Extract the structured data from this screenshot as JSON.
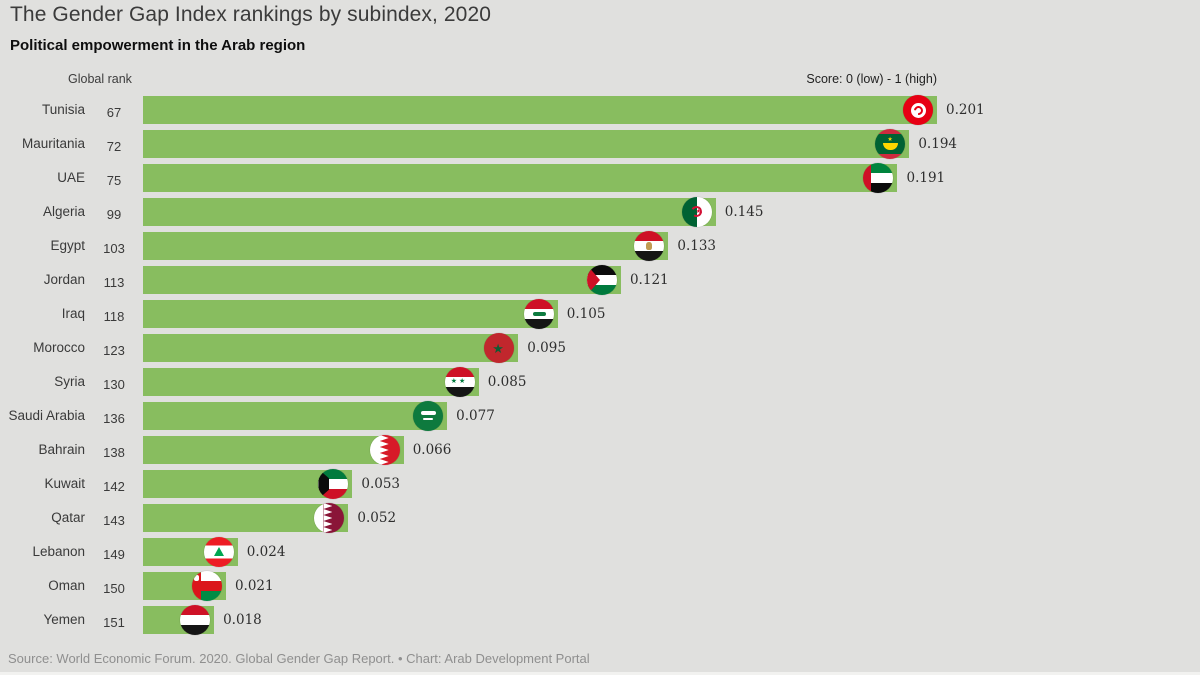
{
  "header": {
    "title": "The Gender Gap Index rankings by subindex, 2020",
    "subtitle": "Political empowerment in the Arab region"
  },
  "chart_data": {
    "type": "bar",
    "orientation": "horizontal",
    "rank_column_header": "Global rank",
    "axis_note": "Score: 0 (low) - 1 (high)",
    "bar_color": "#88bd5f",
    "background_color": "#e0e0de",
    "xlim": [
      0,
      0.201
    ],
    "value_format": "0.000",
    "rows": [
      {
        "country": "Tunisia",
        "rank": 67,
        "value": 0.201,
        "flag": "tn"
      },
      {
        "country": "Mauritania",
        "rank": 72,
        "value": 0.194,
        "flag": "mr"
      },
      {
        "country": "UAE",
        "rank": 75,
        "value": 0.191,
        "flag": "ae"
      },
      {
        "country": "Algeria",
        "rank": 99,
        "value": 0.145,
        "flag": "dz"
      },
      {
        "country": "Egypt",
        "rank": 103,
        "value": 0.133,
        "flag": "eg"
      },
      {
        "country": "Jordan",
        "rank": 113,
        "value": 0.121,
        "flag": "jo"
      },
      {
        "country": "Iraq",
        "rank": 118,
        "value": 0.105,
        "flag": "iq"
      },
      {
        "country": "Morocco",
        "rank": 123,
        "value": 0.095,
        "flag": "ma"
      },
      {
        "country": "Syria",
        "rank": 130,
        "value": 0.085,
        "flag": "sy"
      },
      {
        "country": "Saudi Arabia",
        "rank": 136,
        "value": 0.077,
        "flag": "sa"
      },
      {
        "country": "Bahrain",
        "rank": 138,
        "value": 0.066,
        "flag": "bh"
      },
      {
        "country": "Kuwait",
        "rank": 142,
        "value": 0.053,
        "flag": "kw"
      },
      {
        "country": "Qatar",
        "rank": 143,
        "value": 0.052,
        "flag": "qa"
      },
      {
        "country": "Lebanon",
        "rank": 149,
        "value": 0.024,
        "flag": "lb"
      },
      {
        "country": "Oman",
        "rank": 150,
        "value": 0.021,
        "flag": "om"
      },
      {
        "country": "Yemen",
        "rank": 151,
        "value": 0.018,
        "flag": "ye"
      }
    ]
  },
  "footer": {
    "source": "Source: World Economic Forum. 2020. Global Gender Gap Report. • Chart: Arab Development Portal"
  }
}
